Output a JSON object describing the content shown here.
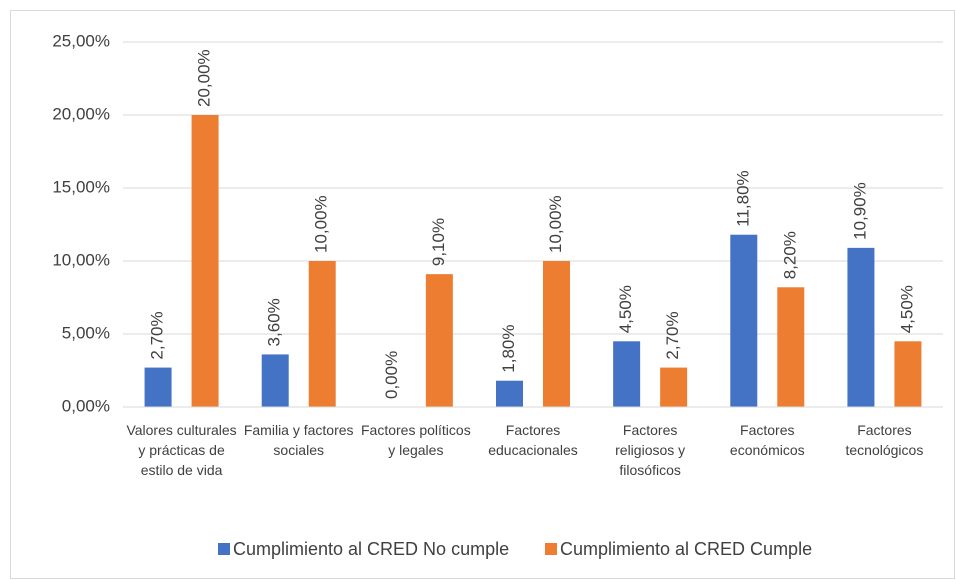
{
  "chart_data": {
    "type": "bar",
    "categories": [
      "Valores culturales y prácticas de estilo de vida",
      "Familia y factores sociales",
      "Factores políticos y legales",
      "Factores educacionales",
      "Factores religiosos y filosóficos",
      "Factores económicos",
      "Factores tecnológicos"
    ],
    "series": [
      {
        "name": "Cumplimiento al CRED No cumple",
        "color": "#4472c4",
        "values": [
          2.7,
          3.6,
          0,
          1.8,
          4.5,
          11.8,
          10.9
        ],
        "value_labels": [
          "2,70%",
          "3,60%",
          "0,00%",
          "1,80%",
          "4,50%",
          "11,80%",
          "10,90%"
        ]
      },
      {
        "name": "Cumplimiento al CRED Cumple",
        "color": "#ed7d31",
        "values": [
          20,
          10,
          9.1,
          10,
          2.7,
          8.2,
          4.5
        ],
        "value_labels": [
          "20,00%",
          "10,00%",
          "9,10%",
          "10,00%",
          "2,70%",
          "8,20%",
          "4,50%"
        ]
      }
    ],
    "ylim": [
      0,
      25
    ],
    "yticks": [
      {
        "value": 0,
        "label": "0,00%"
      },
      {
        "value": 5,
        "label": "5,00%"
      },
      {
        "value": 10,
        "label": "10,00%"
      },
      {
        "value": 15,
        "label": "15,00%"
      },
      {
        "value": 20,
        "label": "20,00%"
      },
      {
        "value": 25,
        "label": "25,00%"
      }
    ],
    "grid": true,
    "legend": "bottom"
  }
}
